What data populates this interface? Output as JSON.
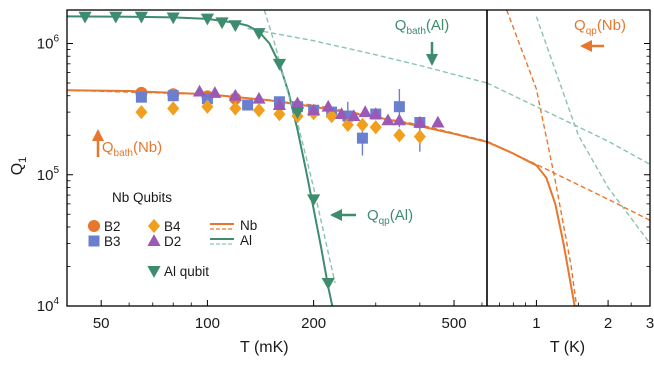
{
  "chart_data": {
    "type": "scatter",
    "colors": {
      "nb": "#e8772e",
      "nb_qubits": "#e8772e",
      "al": "#3d8c6e",
      "al_dashed": "#8cc3ad",
      "b2": "#e8772e",
      "b3": "#6b7fd0",
      "b4": "#f0a01e",
      "d2": "#9b59b6",
      "al_qubit": "#3d8c6e",
      "frame": "#000000"
    },
    "y_axis": {
      "label": "Q",
      "label_sub": "1",
      "scale": "log",
      "ylim": [
        10000,
        1800000
      ],
      "ticks": [
        {
          "value": 10000,
          "base": "10",
          "exp": "4"
        },
        {
          "value": 100000,
          "base": "10",
          "exp": "5"
        },
        {
          "value": 1000000,
          "base": "10",
          "exp": "6"
        }
      ]
    },
    "panels": [
      {
        "id": "left",
        "xlabel": "T (mK)",
        "xscale": "log",
        "xlim": [
          40,
          620
        ],
        "ticks": [
          {
            "value": 50,
            "label": "50"
          },
          {
            "value": 100,
            "label": "100"
          },
          {
            "value": 200,
            "label": "200"
          },
          {
            "value": 500,
            "label": "500"
          }
        ]
      },
      {
        "id": "right",
        "xlabel": "T (K)",
        "xscale": "log",
        "xlim": [
          0.62,
          3.0
        ],
        "ticks": [
          {
            "value": 1,
            "label": "1"
          },
          {
            "value": 2,
            "label": "2"
          },
          {
            "value": 3,
            "label": "3"
          }
        ]
      }
    ],
    "series": [
      {
        "name": "B2",
        "color_key": "b2",
        "marker": "circle",
        "x_mK": [
          65,
          80,
          100,
          120
        ],
        "y": [
          420000,
          410000,
          395000,
          380000
        ]
      },
      {
        "name": "B3",
        "color_key": "b3",
        "marker": "square",
        "x_mK": [
          65,
          80,
          100,
          130,
          160,
          180,
          200,
          225,
          250,
          275,
          300,
          350,
          400
        ],
        "y": [
          390000,
          400000,
          380000,
          340000,
          360000,
          330000,
          310000,
          300000,
          280000,
          190000,
          290000,
          330000,
          250000
        ]
      },
      {
        "name": "B4",
        "color_key": "b4",
        "marker": "diamond",
        "x_mK": [
          65,
          80,
          100,
          120,
          140,
          160,
          180,
          200,
          225,
          250,
          275,
          300,
          350,
          400
        ],
        "y": [
          300000,
          320000,
          330000,
          320000,
          310000,
          290000,
          280000,
          295000,
          280000,
          240000,
          240000,
          230000,
          200000,
          195000
        ]
      },
      {
        "name": "D2",
        "color_key": "d2",
        "marker": "triangle-up",
        "x_mK": [
          95,
          105,
          120,
          140,
          160,
          180,
          200,
          220,
          240,
          260,
          280,
          300,
          325,
          350,
          400,
          450
        ],
        "y": [
          430000,
          420000,
          400000,
          380000,
          340000,
          350000,
          310000,
          330000,
          290000,
          280000,
          300000,
          290000,
          260000,
          260000,
          250000,
          250000
        ]
      },
      {
        "name": "Al qubit",
        "color_key": "al_qubit",
        "marker": "triangle-down",
        "x_mK": [
          45,
          55,
          65,
          80,
          100,
          110,
          120,
          140,
          160,
          180,
          200,
          220
        ],
        "y": [
          1600000,
          1600000,
          1600000,
          1580000,
          1550000,
          1450000,
          1380000,
          1200000,
          700000,
          300000,
          65000,
          15000
        ]
      }
    ],
    "error_bars": [
      {
        "x_mK": 250,
        "y": 280000,
        "y_low": 230000,
        "y_high": 360000
      },
      {
        "x_mK": 275,
        "y": 190000,
        "y_low": 140000,
        "y_high": 260000
      },
      {
        "x_mK": 350,
        "y": 330000,
        "y_low": 230000,
        "y_high": 450000
      },
      {
        "x_mK": 400,
        "y": 195000,
        "y_low": 150000,
        "y_high": 260000
      }
    ],
    "model_curves": [
      {
        "name": "Nb",
        "style": "solid",
        "color_key": "nb",
        "x_mK": [
          40,
          60,
          100,
          150,
          200,
          300,
          400,
          500,
          620,
          700,
          800,
          900,
          1000,
          1100,
          1200,
          1300,
          1400,
          1500
        ],
        "y": [
          440000,
          435000,
          410000,
          370000,
          330000,
          275000,
          235000,
          205000,
          178000,
          162000,
          145000,
          130000,
          118000,
          95000,
          60000,
          30000,
          14000,
          7000
        ]
      },
      {
        "name": "Nb",
        "style": "dashed",
        "color_key": "nb",
        "x_mK": [
          40,
          100,
          200,
          400,
          620,
          1000,
          2000,
          3000
        ],
        "y": [
          440000,
          410000,
          340000,
          240000,
          180000,
          120000,
          65000,
          45000
        ]
      },
      {
        "name": "Nb",
        "style": "dashed",
        "color_key": "nb",
        "x_mK": [
          750,
          1000,
          1200,
          1400,
          1500
        ],
        "y": [
          1800000,
          450000,
          90000,
          20000,
          8000
        ]
      },
      {
        "name": "Al",
        "style": "solid",
        "color_key": "al",
        "x_mK": [
          40,
          60,
          80,
          100,
          120,
          130,
          140,
          150,
          160,
          170,
          180,
          190,
          200,
          210,
          220,
          230
        ],
        "y": [
          1610000,
          1600000,
          1580000,
          1540000,
          1440000,
          1370000,
          1230000,
          1000000,
          700000,
          420000,
          220000,
          110000,
          55000,
          28000,
          14000,
          8000
        ]
      },
      {
        "name": "Al",
        "style": "dashed",
        "color_key": "al_dashed",
        "x_mK": [
          130,
          200,
          300,
          400,
          620,
          1000,
          2000,
          3000
        ],
        "y": [
          1300000,
          1050000,
          820000,
          680000,
          500000,
          330000,
          180000,
          120000
        ]
      },
      {
        "name": "Al",
        "style": "dashed",
        "color_key": "al_dashed",
        "x_mK": [
          145,
          155,
          170,
          180,
          200,
          230
        ],
        "y": [
          1800000,
          1000000,
          400000,
          250000,
          80000,
          15000
        ]
      },
      {
        "name": "",
        "style": "dashed",
        "color_key": "al_dashed",
        "x_mK": [
          1000,
          1500,
          2000,
          3000
        ],
        "y": [
          1600000,
          200000,
          80000,
          30000
        ]
      }
    ],
    "annotations": [
      {
        "text": "Q",
        "sub": "bath",
        "suffix": "(Al)",
        "color_key": "al",
        "arrow": "down"
      },
      {
        "text": "Q",
        "sub": "qp",
        "suffix": "(Nb)",
        "color_key": "nb",
        "arrow": "left"
      },
      {
        "text": "Q",
        "sub": "bath",
        "suffix": "(Nb)",
        "color_key": "nb",
        "arrow": "up"
      },
      {
        "text": "Q",
        "sub": "qp",
        "suffix": "(Al)",
        "color_key": "al",
        "arrow": "left"
      }
    ],
    "legend": {
      "title": "Nb Qubits",
      "placement": "lower-left",
      "entries": [
        {
          "label": "B2",
          "marker": "circle",
          "color_key": "b2"
        },
        {
          "label": "B4",
          "marker": "diamond",
          "color_key": "b4"
        },
        {
          "label": "Nb",
          "marker": "line",
          "color_key": "nb"
        },
        {
          "label": "B3",
          "marker": "square",
          "color_key": "b3"
        },
        {
          "label": "D2",
          "marker": "triangle-up",
          "color_key": "d2"
        },
        {
          "label": "Al",
          "marker": "line",
          "color_key": "al"
        },
        {
          "label": "Al qubit",
          "marker": "triangle-down",
          "color_key": "al_qubit"
        }
      ]
    }
  }
}
